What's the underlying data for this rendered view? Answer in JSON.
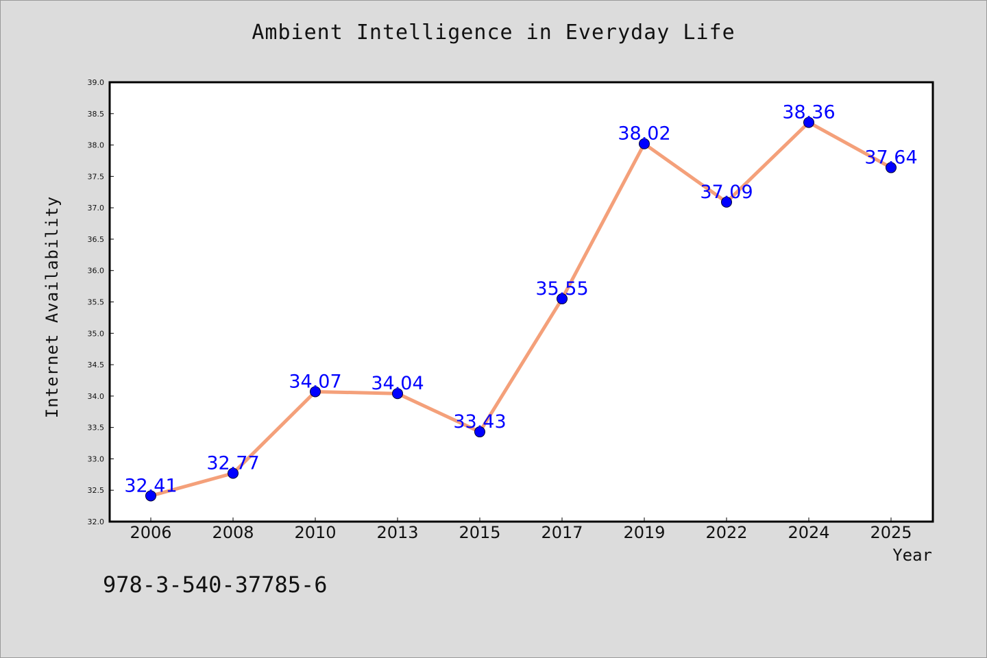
{
  "figure": {
    "isbn_text": "978-3-540-37785-6"
  },
  "chart_data": {
    "type": "line",
    "title": "Ambient Intelligence in Everyday Life",
    "xlabel": "Year",
    "ylabel": "Internet Availability",
    "categories": [
      "2006",
      "2008",
      "2010",
      "2013",
      "2015",
      "2017",
      "2019",
      "2022",
      "2024",
      "2025"
    ],
    "series": [
      {
        "values": [
          32.41,
          32.77,
          34.07,
          34.04,
          33.43,
          35.55,
          38.02,
          37.09,
          38.36,
          37.64
        ],
        "data_labels": [
          "32.41",
          "32.77",
          "34.07",
          "34.04",
          "33.43",
          "35.55",
          "38.02",
          "37.09",
          "38.36",
          "37.64"
        ]
      }
    ],
    "ylim": [
      32.0,
      39.0
    ],
    "yticks": [
      "32.0",
      "32.5",
      "33.0",
      "33.5",
      "34.0",
      "34.5",
      "35.0",
      "35.5",
      "36.0",
      "36.5",
      "37.0",
      "37.5",
      "38.0",
      "38.5",
      "39.0"
    ],
    "grid": false,
    "colors": {
      "line": "#f4a07a",
      "marker": "#0000ff",
      "label": "#0000ff",
      "plot_background": "#ffffff",
      "figure_background": "#dcdcdc"
    }
  }
}
